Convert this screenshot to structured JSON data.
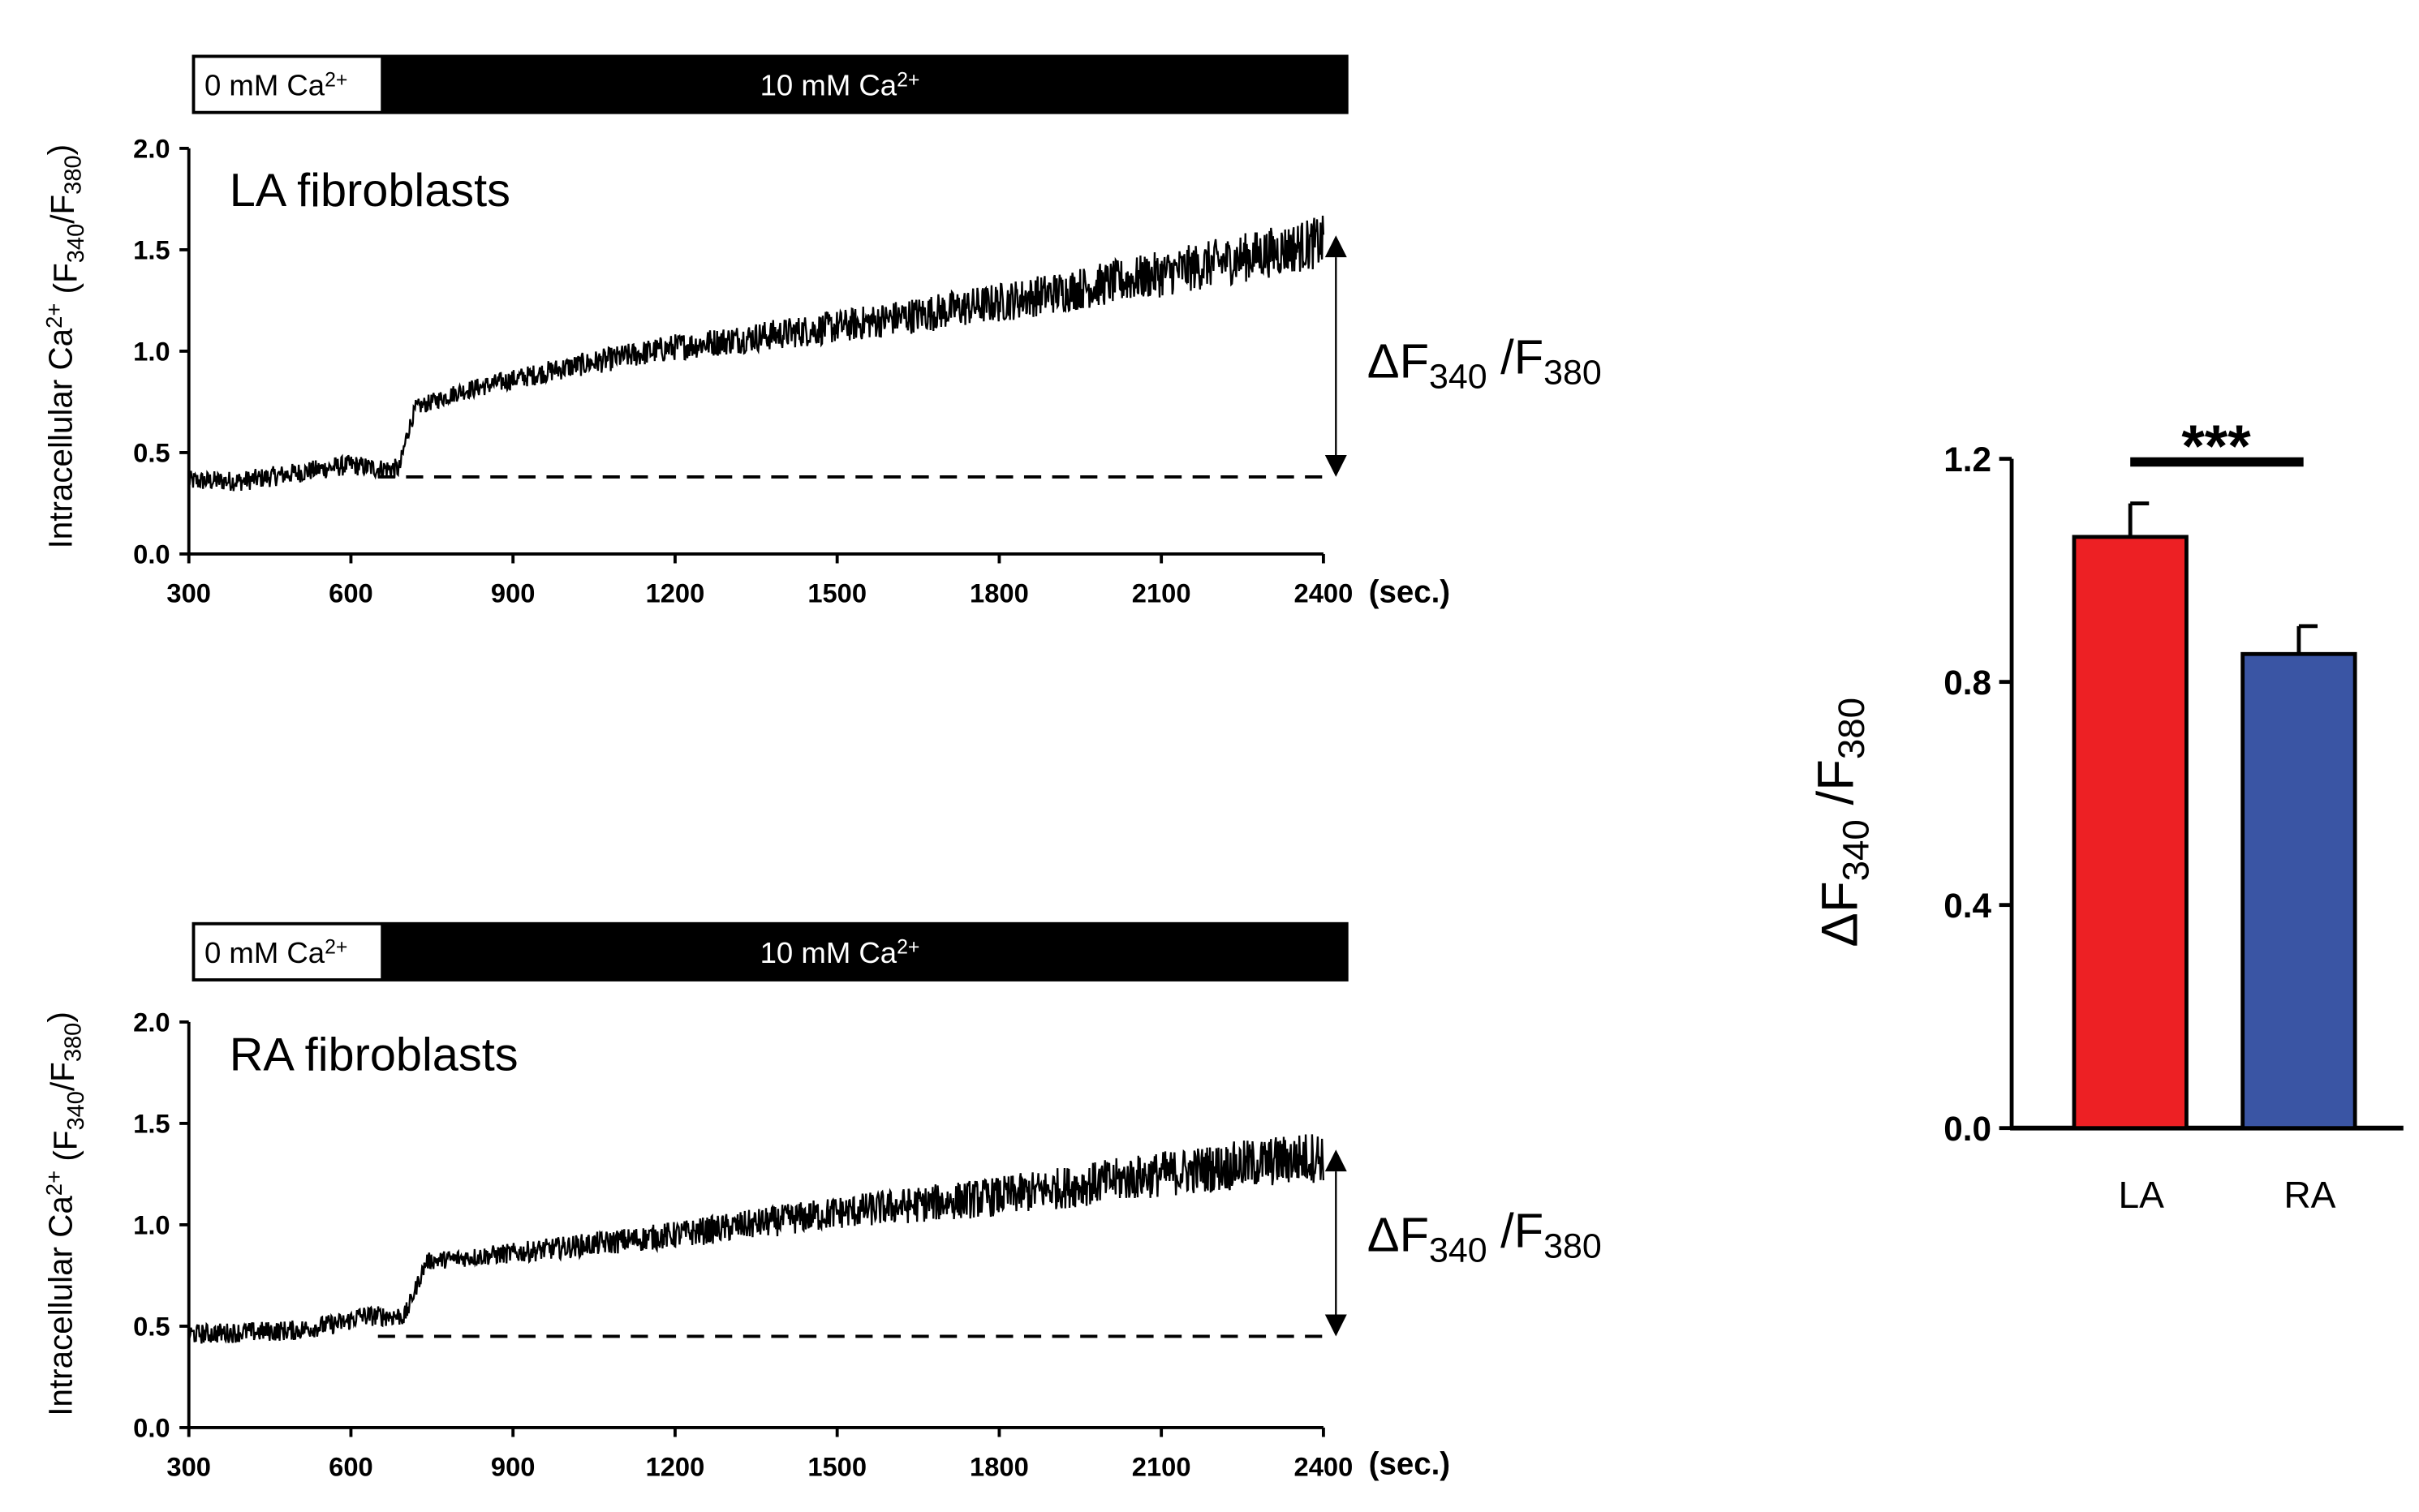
{
  "chart_data": [
    {
      "type": "line",
      "panel_label": "LA fibroblasts",
      "ylabel": "Intracellular Ca2+ (F340/F380)",
      "x_unit": "(sec.)",
      "xlim": [
        300,
        2400
      ],
      "ylim": [
        0,
        2.0
      ],
      "x_ticks": [
        "300",
        "600",
        "900",
        "1200",
        "1500",
        "1800",
        "2100",
        "2400"
      ],
      "y_ticks": [
        "0.0",
        "0.5",
        "1.0",
        "1.5",
        "2.0"
      ],
      "solution_bar": {
        "low": "0 mM Ca2+",
        "high": "10 mM Ca2+",
        "switch_x": 650
      },
      "baseline": 0.38,
      "delta_label": "ΔF340 /F380",
      "trace_points": [
        [
          300,
          0.36
        ],
        [
          400,
          0.36
        ],
        [
          500,
          0.4
        ],
        [
          600,
          0.44
        ],
        [
          650,
          0.42
        ],
        [
          690,
          0.42
        ],
        [
          705,
          0.6
        ],
        [
          720,
          0.72
        ],
        [
          800,
          0.8
        ],
        [
          1000,
          0.92
        ],
        [
          1200,
          1.02
        ],
        [
          1500,
          1.12
        ],
        [
          1800,
          1.24
        ],
        [
          2100,
          1.38
        ],
        [
          2400,
          1.54
        ]
      ]
    },
    {
      "type": "line",
      "panel_label": "RA fibroblasts",
      "ylabel": "Intracellular Ca2+ (F340/F380)",
      "x_unit": "(sec.)",
      "xlim": [
        300,
        2400
      ],
      "ylim": [
        0,
        2.0
      ],
      "x_ticks": [
        "300",
        "600",
        "900",
        "1200",
        "1500",
        "1800",
        "2100",
        "2400"
      ],
      "y_ticks": [
        "0.0",
        "0.5",
        "1.0",
        "1.5",
        "2.0"
      ],
      "solution_bar": {
        "low": "0 mM Ca2+",
        "high": "10 mM Ca2+",
        "switch_x": 650
      },
      "baseline": 0.45,
      "delta_label": "ΔF340 /F380",
      "trace_points": [
        [
          300,
          0.46
        ],
        [
          400,
          0.47
        ],
        [
          500,
          0.48
        ],
        [
          590,
          0.52
        ],
        [
          615,
          0.55
        ],
        [
          700,
          0.55
        ],
        [
          725,
          0.72
        ],
        [
          740,
          0.82
        ],
        [
          900,
          0.86
        ],
        [
          1200,
          0.95
        ],
        [
          1500,
          1.06
        ],
        [
          1800,
          1.14
        ],
        [
          2100,
          1.25
        ],
        [
          2400,
          1.34
        ]
      ]
    },
    {
      "type": "bar",
      "categories": [
        "LA",
        "RA"
      ],
      "values": [
        1.06,
        0.85
      ],
      "errors": [
        0.06,
        0.05
      ],
      "colors": [
        "#ED2024",
        "#3A55A4"
      ],
      "ylabel": "ΔF340 /F380",
      "ylim": [
        0,
        1.2
      ],
      "y_ticks": [
        "0.0",
        "0.4",
        "0.8",
        "1.2"
      ],
      "significance": "***"
    }
  ]
}
